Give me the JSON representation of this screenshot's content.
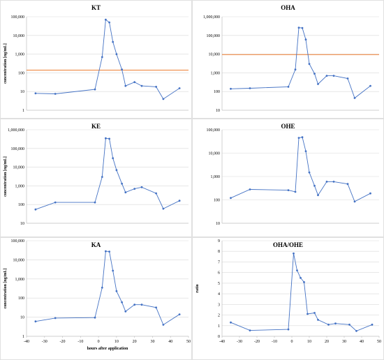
{
  "chart_data": [
    {
      "type": "line",
      "title": "KT",
      "ylabel": "concentration [ng/mL]",
      "xlabel": "",
      "yscale": "log",
      "ylim": [
        1,
        100000
      ],
      "yticks": [
        "1",
        "10",
        "100",
        "1,000",
        "10,000",
        "100,000"
      ],
      "xlim": [
        -40,
        50
      ],
      "xticks": [],
      "grid": true,
      "x": [
        -35,
        -24,
        -2,
        2,
        4,
        6,
        8,
        10,
        13,
        15,
        20,
        24,
        32,
        36,
        45
      ],
      "y": [
        8,
        7.5,
        13,
        700,
        70000,
        50000,
        4500,
        1000,
        150,
        20,
        32,
        20,
        18,
        4,
        15
      ],
      "reference_line": 140
    },
    {
      "type": "line",
      "title": "OHA",
      "ylabel": "",
      "xlabel": "",
      "yscale": "log",
      "ylim": [
        10,
        1000000
      ],
      "yticks": [
        "10",
        "100",
        "1,000",
        "10,000",
        "100,000",
        "1,000,000"
      ],
      "xlim": [
        -40,
        50
      ],
      "xticks": [],
      "grid": true,
      "x": [
        -35,
        -24,
        -2,
        2,
        4,
        6,
        8,
        10,
        13,
        15,
        20,
        24,
        32,
        36,
        45
      ],
      "y": [
        140,
        150,
        180,
        1500,
        260000,
        250000,
        60000,
        3000,
        900,
        250,
        700,
        700,
        500,
        45,
        200
      ],
      "reference_line": 9500
    },
    {
      "type": "line",
      "title": "KE",
      "ylabel": "concentration [ng/mL]",
      "xlabel": "",
      "yscale": "log",
      "ylim": [
        10,
        1000000
      ],
      "yticks": [
        "10",
        "100",
        "1,000",
        "10,000",
        "100,000",
        "1,000,000"
      ],
      "xlim": [
        -40,
        50
      ],
      "xticks": [],
      "grid": true,
      "x": [
        -35,
        -24,
        -2,
        2,
        4,
        6,
        8,
        10,
        13,
        15,
        20,
        24,
        32,
        36,
        45
      ],
      "y": [
        55,
        130,
        130,
        3000,
        350000,
        330000,
        30000,
        7000,
        1300,
        450,
        700,
        850,
        400,
        60,
        160
      ]
    },
    {
      "type": "line",
      "title": "OHE",
      "ylabel": "",
      "xlabel": "",
      "yscale": "log",
      "ylim": [
        10,
        100000
      ],
      "yticks": [
        "10",
        "100",
        "1,000",
        "10,000",
        "100,000"
      ],
      "xlim": [
        -40,
        50
      ],
      "xticks": [],
      "grid": true,
      "x": [
        -35,
        -24,
        -2,
        2,
        4,
        6,
        8,
        10,
        13,
        15,
        20,
        24,
        32,
        36,
        45
      ],
      "y": [
        120,
        280,
        260,
        220,
        45000,
        48000,
        12000,
        1500,
        400,
        160,
        600,
        600,
        480,
        85,
        190
      ]
    },
    {
      "type": "line",
      "title": "KA",
      "ylabel": "concentration [ng/mL]",
      "xlabel": "hours after application",
      "yscale": "log",
      "ylim": [
        1,
        100000
      ],
      "yticks": [
        "1",
        "10",
        "100",
        "1,000",
        "10,000",
        "100,000"
      ],
      "xlim": [
        -40,
        50
      ],
      "xticks": [
        "-40",
        "-30",
        "-20",
        "-10",
        "0",
        "10",
        "20",
        "30",
        "40",
        "50"
      ],
      "grid": true,
      "x": [
        -35,
        -24,
        -2,
        2,
        4,
        6,
        8,
        10,
        13,
        15,
        20,
        24,
        32,
        36,
        45
      ],
      "y": [
        6,
        9,
        9.5,
        350,
        28000,
        27000,
        2700,
        230,
        60,
        20,
        45,
        45,
        32,
        4,
        14
      ]
    },
    {
      "type": "line",
      "title": "OHA/OHE",
      "ylabel": "ratio",
      "xlabel": "",
      "yscale": "linear",
      "ylim": [
        0,
        9
      ],
      "yticks": [
        "0",
        "1",
        "2",
        "3",
        "4",
        "5",
        "6",
        "7",
        "8",
        "9"
      ],
      "xlim": [
        -40,
        50
      ],
      "xticks": [
        "-40",
        "-30",
        "-20",
        "-10",
        "0",
        "10",
        "20",
        "30",
        "40",
        "50"
      ],
      "grid": true,
      "x": [
        -35,
        -24,
        -2,
        1,
        3,
        5,
        7,
        9,
        13,
        15,
        21,
        25,
        33,
        37,
        46
      ],
      "y": [
        1.3,
        0.55,
        0.65,
        7.8,
        6.2,
        5.5,
        5.1,
        2.1,
        2.2,
        1.55,
        1.1,
        1.2,
        1.1,
        0.5,
        1.1
      ]
    }
  ]
}
